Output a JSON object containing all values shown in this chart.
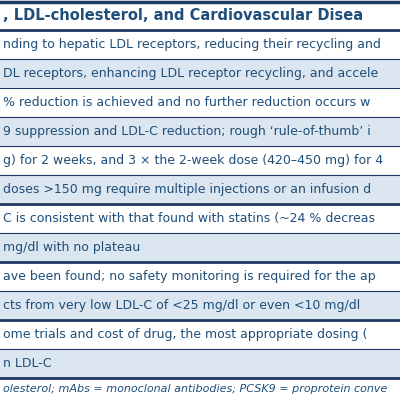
{
  "title": ", LDL-cholesterol, and Cardiovascular Disea",
  "rows": [
    "nding to hepatic LDL receptors, reducing their recycling and",
    "DL receptors, enhancing LDL receptor recycling, and accele",
    "% reduction is achieved and no further reduction occurs w",
    "9 suppression and LDL-C reduction; rough ‘rule-of-thumb’ i",
    "g) for 2 weeks, and 3 × the 2-week dose (420–450 mg) for 4",
    "doses >150 mg require multiple injections or an infusion d",
    "C is consistent with that found with statins (~24 % decreas",
    "mg/dl with no plateau",
    "ave been found; no safety monitoring is required for the ap",
    "cts from very low LDL-C of <25 mg/dl or even <10 mg/dl",
    "ome trials and cost of drug, the most appropriate dosing (",
    "n LDL-C"
  ],
  "footer": "olesterol; mAbs = monoclonal antibodies; PCSK9 = proprotein conve",
  "row_colors": [
    "#ffffff",
    "#dce6f1",
    "#ffffff",
    "#dce6f1",
    "#ffffff",
    "#dce6f1",
    "#ffffff",
    "#dce6f1",
    "#ffffff",
    "#dce6f1",
    "#ffffff",
    "#dce6f1"
  ],
  "header_bg": "#ffffff",
  "header_text_color": "#1f4e79",
  "text_color": "#1f4e79",
  "footer_text_color": "#1f4e79",
  "border_color": "#1f3864",
  "title_fontsize": 10.5,
  "row_fontsize": 9.0,
  "footer_fontsize": 8.0,
  "fig_width": 4.0,
  "fig_height": 4.0,
  "dpi": 100
}
